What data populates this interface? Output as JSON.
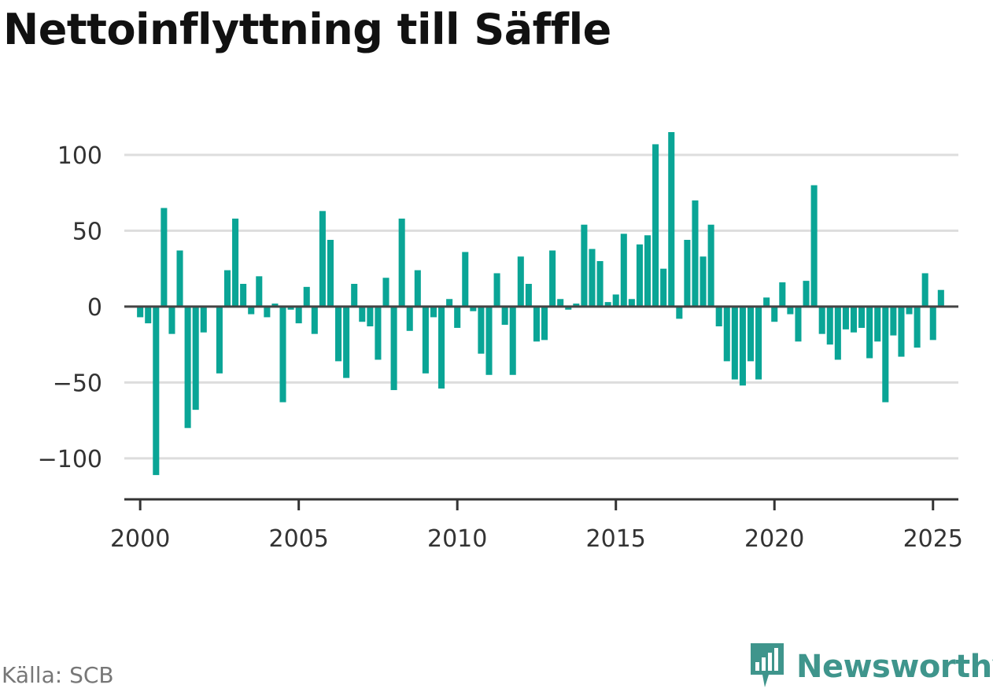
{
  "title": "Nettoinflyttning till Säffle",
  "source": "Källa: SCB",
  "brand": {
    "name": "Newsworthy",
    "icon": "bar-chart-speech-bubble-icon",
    "color": "#3f958c"
  },
  "chart_data": {
    "type": "bar",
    "title": "Nettoinflyttning till Säffle",
    "xlabel": "",
    "ylabel": "",
    "grid": true,
    "bar_color": "#0aa596",
    "ylim": [
      -127,
      115
    ],
    "xlim": [
      1999.5,
      2025.8
    ],
    "yticks": [
      100,
      50,
      0,
      -50,
      -100
    ],
    "ytick_labels": [
      "100",
      "50",
      "0",
      "−50",
      "−100"
    ],
    "xticks": [
      2000,
      2005,
      2010,
      2015,
      2020,
      2025
    ],
    "xtick_labels": [
      "2000",
      "2005",
      "2010",
      "2015",
      "2020",
      "2025"
    ],
    "x": [
      "2000Q1",
      "2000Q2",
      "2000Q3",
      "2000Q4",
      "2001Q1",
      "2001Q2",
      "2001Q3",
      "2001Q4",
      "2002Q1",
      "2002Q2",
      "2002Q3",
      "2002Q4",
      "2003Q1",
      "2003Q2",
      "2003Q3",
      "2003Q4",
      "2004Q1",
      "2004Q2",
      "2004Q3",
      "2004Q4",
      "2005Q1",
      "2005Q2",
      "2005Q3",
      "2005Q4",
      "2006Q1",
      "2006Q2",
      "2006Q3",
      "2006Q4",
      "2007Q1",
      "2007Q2",
      "2007Q3",
      "2007Q4",
      "2008Q1",
      "2008Q2",
      "2008Q3",
      "2008Q4",
      "2009Q1",
      "2009Q2",
      "2009Q3",
      "2009Q4",
      "2010Q1",
      "2010Q2",
      "2010Q3",
      "2010Q4",
      "2011Q1",
      "2011Q2",
      "2011Q3",
      "2011Q4",
      "2012Q1",
      "2012Q2",
      "2012Q3",
      "2012Q4",
      "2013Q1",
      "2013Q2",
      "2013Q3",
      "2013Q4",
      "2014Q1",
      "2014Q2",
      "2014Q3",
      "2014Q4",
      "2015Q1",
      "2015Q2",
      "2015Q3",
      "2015Q4",
      "2016Q1",
      "2016Q2",
      "2016Q3",
      "2016Q4",
      "2017Q1",
      "2017Q2",
      "2017Q3",
      "2017Q4",
      "2018Q1",
      "2018Q2",
      "2018Q3",
      "2018Q4",
      "2019Q1",
      "2019Q2",
      "2019Q3",
      "2019Q4",
      "2020Q1",
      "2020Q2",
      "2020Q3",
      "2020Q4",
      "2021Q1",
      "2021Q2",
      "2021Q3",
      "2021Q4",
      "2022Q1",
      "2022Q2",
      "2022Q3",
      "2022Q4",
      "2023Q1",
      "2023Q2",
      "2023Q3",
      "2023Q4",
      "2024Q1",
      "2024Q2",
      "2024Q3",
      "2024Q4",
      "2025Q1",
      "2025Q2"
    ],
    "values": [
      -7,
      -11,
      -111,
      65,
      -18,
      37,
      -80,
      -68,
      -17,
      0,
      -44,
      24,
      58,
      15,
      -5,
      20,
      -7,
      2,
      -63,
      -2,
      -11,
      13,
      -18,
      63,
      44,
      -36,
      -47,
      15,
      -10,
      -13,
      -35,
      19,
      -55,
      58,
      -16,
      24,
      -44,
      -7,
      -54,
      5,
      -14,
      36,
      -3,
      -31,
      -45,
      22,
      -12,
      -45,
      33,
      15,
      -23,
      -22,
      37,
      5,
      -2,
      2,
      54,
      38,
      30,
      3,
      8,
      48,
      5,
      41,
      47,
      107,
      25,
      115,
      -8,
      44,
      70,
      33,
      54,
      -13,
      -36,
      -48,
      -52,
      -36,
      -48,
      6,
      -10,
      16,
      -5,
      -23,
      17,
      80,
      -18,
      -25,
      -35,
      -15,
      -17,
      -14,
      -34,
      -23,
      -63,
      -19,
      -33,
      -5,
      -27,
      22,
      -22,
      11
    ]
  }
}
